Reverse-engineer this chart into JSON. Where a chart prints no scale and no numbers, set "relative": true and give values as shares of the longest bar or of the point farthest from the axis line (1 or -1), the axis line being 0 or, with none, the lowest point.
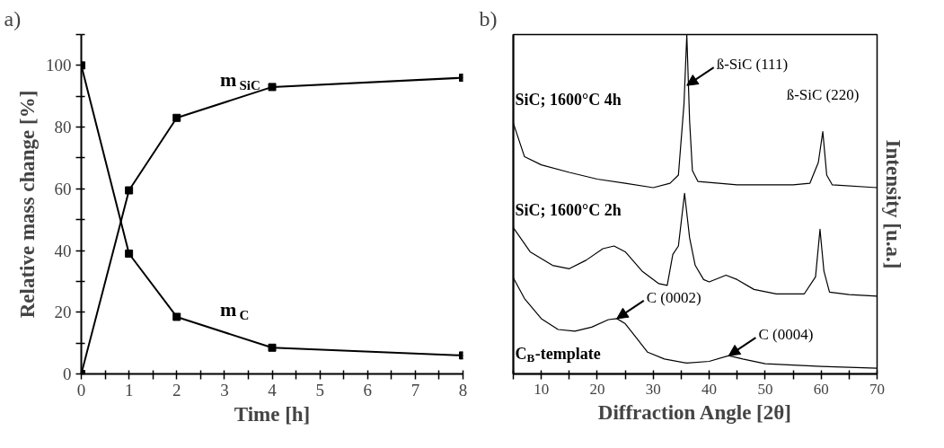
{
  "chart_data": [
    {
      "type": "line",
      "title": "a)",
      "xlabel": "Time [h]",
      "ylabel": "Relative mass change [%]",
      "marker": "square",
      "line_style": "solid",
      "grid": false,
      "legend": false,
      "xlim": [
        0,
        8
      ],
      "ylim": [
        0,
        110
      ],
      "xticks": [
        0,
        {
          "value": 0.5,
          "label": null
        },
        1,
        {
          "value": 1.5,
          "label": null
        },
        2,
        {
          "value": 2.5,
          "label": null
        },
        3,
        {
          "value": 3.5,
          "label": null
        },
        4,
        {
          "value": 4.5,
          "label": null
        },
        5,
        {
          "value": 5.5,
          "label": null
        },
        6,
        {
          "value": 6.5,
          "label": null
        },
        7,
        {
          "value": 7.5,
          "label": null
        },
        8
      ],
      "yticks": [
        0,
        {
          "value": 10,
          "label": null
        },
        20,
        {
          "value": 30,
          "label": null
        },
        40,
        {
          "value": 50,
          "label": null
        },
        60,
        {
          "value": 70,
          "label": null
        },
        80,
        {
          "value": 90,
          "label": null
        },
        100,
        {
          "value": 110,
          "label": null
        }
      ],
      "x": [
        0,
        1,
        2,
        4,
        8
      ],
      "series": [
        {
          "name": "m$_{SiC}$",
          "color": "#000000",
          "values": [
            0,
            59.5,
            83,
            93,
            96
          ]
        },
        {
          "name": "m$_{C}$",
          "color": "#000000",
          "values": [
            100,
            39,
            18.5,
            8.5,
            6
          ]
        }
      ]
    },
    {
      "type": "line",
      "title": "b)",
      "xlabel": "Diffraction Angle [2θ]",
      "y2label": "Intensity [u.a.]",
      "relative": true,
      "marker": "none",
      "line_style": "solid",
      "grid": false,
      "legend": false,
      "xlim": [
        5,
        70
      ],
      "xticks": [
        {
          "value": 5,
          "label": null
        },
        10,
        {
          "value": 15,
          "label": null
        },
        20,
        {
          "value": 25,
          "label": null
        },
        30,
        {
          "value": 35,
          "label": null
        },
        40,
        {
          "value": 45,
          "label": null
        },
        50,
        {
          "value": 55,
          "label": null
        },
        60,
        {
          "value": 65,
          "label": null
        },
        70
      ],
      "annotations": [
        {
          "text": "ß-SiC (111)",
          "x": 36,
          "y": 0.85
        },
        {
          "text": "ß-SiC (220)",
          "x": 60.3,
          "y": 0.714
        },
        {
          "text": "C (0002)",
          "x": 23.5,
          "y": 0.163
        },
        {
          "text": "C (0004)",
          "x": 43.5,
          "y": 0.054
        }
      ],
      "series": [
        {
          "name": "SiC; 1600°C 4h",
          "color": "#000000",
          "x": [
            5,
            7,
            10,
            15,
            20,
            25,
            30,
            33,
            34.5,
            35.5,
            36,
            36.5,
            37,
            38,
            45,
            55,
            58,
            59.5,
            60.3,
            61,
            62,
            70
          ],
          "values": [
            0.739,
            0.64,
            0.616,
            0.594,
            0.574,
            0.562,
            0.549,
            0.562,
            0.586,
            0.796,
            1.0,
            0.746,
            0.599,
            0.567,
            0.557,
            0.557,
            0.562,
            0.623,
            0.714,
            0.586,
            0.557,
            0.549
          ]
        },
        {
          "name": "SiC; 1600°C 2h",
          "color": "#000000",
          "x": [
            5,
            8,
            12,
            15,
            18,
            21,
            23,
            25,
            28,
            31,
            32.5,
            33.5,
            34.5,
            35.6,
            36.5,
            37.5,
            39,
            40,
            43,
            45,
            48,
            52,
            57,
            59,
            59.8,
            60.5,
            61.5,
            65,
            70
          ],
          "values": [
            0.431,
            0.36,
            0.32,
            0.31,
            0.335,
            0.369,
            0.377,
            0.36,
            0.303,
            0.266,
            0.261,
            0.352,
            0.377,
            0.532,
            0.401,
            0.32,
            0.278,
            0.271,
            0.291,
            0.278,
            0.249,
            0.236,
            0.236,
            0.286,
            0.426,
            0.303,
            0.241,
            0.234,
            0.229
          ]
        },
        {
          "name": "C$_{B}$-template",
          "color": "#000000",
          "x": [
            5,
            7,
            10,
            13,
            16,
            19,
            22,
            23.5,
            25,
            27,
            29,
            32,
            36,
            40,
            43.5,
            46,
            50,
            60,
            70
          ],
          "values": [
            0.283,
            0.222,
            0.163,
            0.131,
            0.126,
            0.138,
            0.16,
            0.163,
            0.148,
            0.106,
            0.064,
            0.044,
            0.032,
            0.037,
            0.054,
            0.044,
            0.03,
            0.022,
            0.017
          ]
        }
      ]
    }
  ]
}
